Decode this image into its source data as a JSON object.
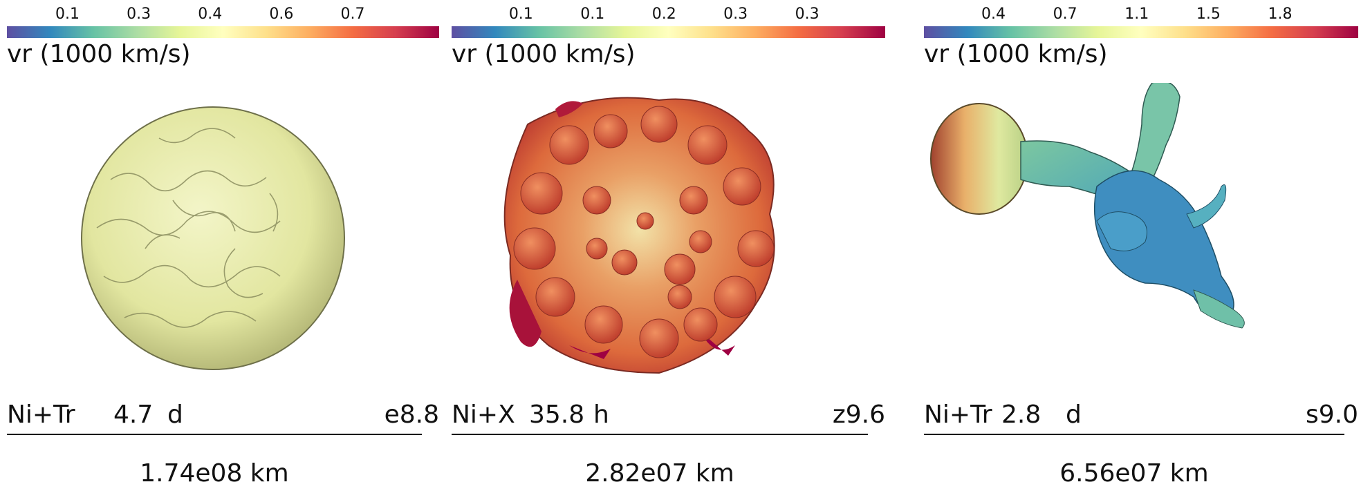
{
  "panels": [
    {
      "colorbar": {
        "ticks": [
          "0.1",
          "0.3",
          "0.4",
          "0.6",
          "0.7"
        ],
        "label": "vr (1000 km/s)"
      },
      "caption": {
        "species": "Ni+Tr",
        "time": "4.7",
        "unit": "d",
        "model": "e8.8"
      },
      "scale": "1.74e08 km",
      "fill": "#e8ecaa"
    },
    {
      "colorbar": {
        "ticks": [
          "0.1",
          "0.1",
          "0.2",
          "0.3",
          "0.3"
        ],
        "label": "vr (1000 km/s)"
      },
      "caption": {
        "species": "Ni+X",
        "time": "35.8",
        "unit": "h",
        "model": "z9.6"
      },
      "scale": "2.82e07 km",
      "fill": "#e6733f"
    },
    {
      "colorbar": {
        "ticks": [
          "0.4",
          "0.7",
          "1.1",
          "1.5",
          "1.8"
        ],
        "label": "vr (1000 km/s)"
      },
      "caption": {
        "species": "Ni+Tr",
        "time": "2.8",
        "unit": "d",
        "model": "s9.0"
      },
      "scale": "6.56e07 km",
      "fill": "#4a9ec9"
    }
  ],
  "colormap": {
    "name": "Spectral",
    "colors": [
      "#5e4fa2",
      "#3288bd",
      "#66c2a5",
      "#abdda4",
      "#e6f598",
      "#ffffbf",
      "#fee08b",
      "#fdae61",
      "#f46d43",
      "#d53e4f",
      "#9e0142"
    ]
  }
}
